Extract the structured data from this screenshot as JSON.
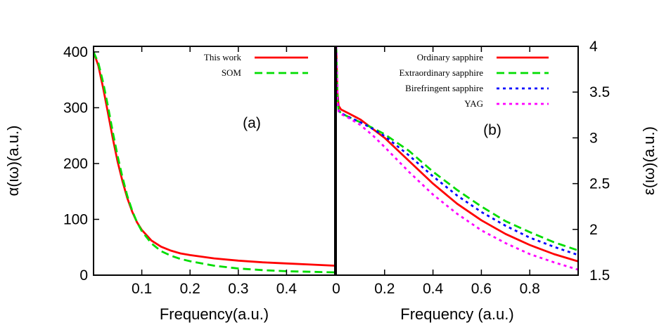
{
  "chart_data": [
    {
      "type": "line",
      "panel_label": "(a)",
      "xlabel": "Frequency(a.u.)",
      "ylabel": "α(ιω)(a.u.)",
      "xlim": [
        0,
        0.5
      ],
      "ylim": [
        0,
        410
      ],
      "x_ticks": [
        0.1,
        0.2,
        0.3,
        0.4
      ],
      "x_tick_labels": [
        "0.1",
        "0.2",
        "0.3",
        "0.4"
      ],
      "y_ticks": [
        0,
        100,
        200,
        300,
        400
      ],
      "y_tick_labels": [
        "0",
        "100",
        "200",
        "300",
        "400"
      ],
      "grid": false,
      "legend_position": "top-right",
      "series": [
        {
          "name": "This work",
          "color": "#ff0000",
          "dash": "solid",
          "x": [
            0,
            0.01,
            0.02,
            0.03,
            0.04,
            0.05,
            0.06,
            0.07,
            0.08,
            0.09,
            0.1,
            0.12,
            0.14,
            0.16,
            0.18,
            0.2,
            0.25,
            0.3,
            0.35,
            0.4,
            0.45,
            0.5
          ],
          "y": [
            400,
            375,
            335,
            290,
            245,
            203,
            168,
            138,
            114,
            95,
            81,
            62,
            51,
            44,
            39,
            36,
            30,
            26,
            23,
            21,
            19,
            17
          ]
        },
        {
          "name": "SOM",
          "color": "#00dd00",
          "dash": "dashed",
          "x": [
            0,
            0.01,
            0.02,
            0.03,
            0.04,
            0.05,
            0.06,
            0.07,
            0.08,
            0.09,
            0.1,
            0.12,
            0.14,
            0.16,
            0.18,
            0.2,
            0.25,
            0.3,
            0.35,
            0.4,
            0.45,
            0.5
          ],
          "y": [
            400,
            380,
            345,
            302,
            256,
            213,
            175,
            142,
            116,
            95,
            79,
            57,
            43,
            35,
            29,
            25,
            17,
            12,
            9,
            7,
            6,
            5
          ]
        }
      ]
    },
    {
      "type": "line",
      "panel_label": "(b)",
      "xlabel": "Frequency (a.u.)",
      "ylabel": "ε(ιω)(a.u.)",
      "xlim": [
        0,
        1.0
      ],
      "ylim": [
        1.5,
        4.0
      ],
      "x_ticks": [
        0,
        0.2,
        0.4,
        0.6,
        0.8
      ],
      "x_tick_labels": [
        "0",
        "0.2",
        "0.4",
        "0.6",
        "0.8"
      ],
      "y_ticks": [
        1.5,
        2,
        2.5,
        3,
        3.5,
        4
      ],
      "y_tick_labels": [
        "1.5",
        "2",
        "2.5",
        "3",
        "3.5",
        "4"
      ],
      "grid": false,
      "legend_position": "top-right",
      "series": [
        {
          "name": "Ordinary sapphire",
          "color": "#ff0000",
          "dash": "solid",
          "x": [
            0.0,
            0.005,
            0.01,
            0.02,
            0.05,
            0.1,
            0.15,
            0.2,
            0.3,
            0.4,
            0.5,
            0.6,
            0.7,
            0.8,
            0.9,
            1.0
          ],
          "y": [
            4.0,
            3.5,
            3.35,
            3.31,
            3.27,
            3.2,
            3.1,
            3.0,
            2.75,
            2.5,
            2.28,
            2.1,
            1.95,
            1.83,
            1.73,
            1.65
          ]
        },
        {
          "name": "Extraordinary sapphire",
          "color": "#00dd00",
          "dash": "dashed",
          "x": [
            0.0,
            0.005,
            0.01,
            0.02,
            0.05,
            0.1,
            0.15,
            0.2,
            0.3,
            0.4,
            0.5,
            0.6,
            0.7,
            0.8,
            0.9,
            1.0
          ],
          "y": [
            4.0,
            3.45,
            3.3,
            3.27,
            3.23,
            3.17,
            3.11,
            3.04,
            2.86,
            2.63,
            2.43,
            2.25,
            2.09,
            1.97,
            1.86,
            1.77
          ]
        },
        {
          "name": "Birefringent sapphire",
          "color": "#0000ff",
          "dash": "dotted",
          "x": [
            0.0,
            0.005,
            0.01,
            0.02,
            0.05,
            0.1,
            0.15,
            0.2,
            0.3,
            0.4,
            0.5,
            0.6,
            0.7,
            0.8,
            0.9,
            1.0
          ],
          "y": [
            4.0,
            3.45,
            3.3,
            3.27,
            3.23,
            3.17,
            3.1,
            3.02,
            2.81,
            2.58,
            2.37,
            2.19,
            2.04,
            1.91,
            1.81,
            1.72
          ]
        },
        {
          "name": "YAG",
          "color": "#ff00ff",
          "dash": "dotted",
          "x": [
            0.0,
            0.005,
            0.01,
            0.02,
            0.05,
            0.1,
            0.15,
            0.2,
            0.3,
            0.4,
            0.5,
            0.6,
            0.7,
            0.8,
            0.9,
            1.0
          ],
          "y": [
            4.0,
            3.4,
            3.29,
            3.26,
            3.22,
            3.14,
            3.03,
            2.9,
            2.63,
            2.38,
            2.17,
            1.99,
            1.85,
            1.73,
            1.64,
            1.56
          ]
        }
      ]
    }
  ]
}
